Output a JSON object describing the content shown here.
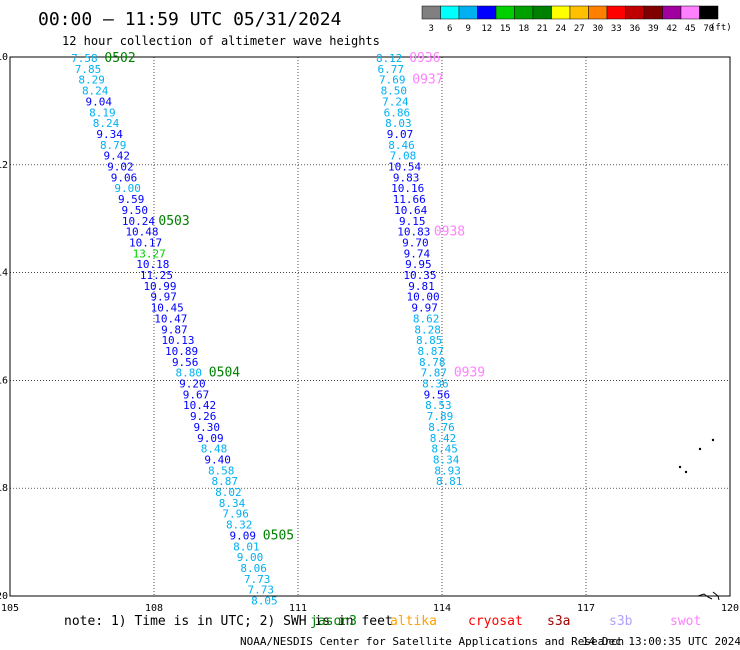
{
  "title": "00:00 – 11:59 UTC 05/31/2024",
  "subtitle": "12 hour collection of altimeter wave heights",
  "legend": {
    "bins": [
      "3",
      "6",
      "9",
      "12",
      "15",
      "18",
      "21",
      "24",
      "27",
      "30",
      "33",
      "36",
      "39",
      "42",
      "45",
      "70"
    ],
    "unit": "(ft)",
    "colors": [
      "#808080",
      "#00ffff",
      "#00b0f0",
      "#0000ff",
      "#00d000",
      "#00a000",
      "#008000",
      "#ffff00",
      "#ffc000",
      "#ff8000",
      "#ff0000",
      "#c00000",
      "#800000",
      "#a000a0",
      "#ff80ff",
      "#000000"
    ]
  },
  "axes": {
    "lon_ticks": [
      "105",
      "108",
      "111",
      "114",
      "117",
      "120"
    ],
    "lat_ticks": [
      "10",
      "12",
      "14",
      "16",
      "18",
      "20"
    ],
    "lon_range": [
      105,
      120
    ],
    "lat_range": [
      10,
      20
    ]
  },
  "tracks": [
    {
      "name": "west-track",
      "lon_start": 106.55,
      "lon_end": 110.3,
      "observations": [
        "7.58",
        "7.85",
        "8.29",
        "8.24",
        "9.04",
        "8.19",
        "8.24",
        "9.34",
        "8.79",
        "9.42",
        "9.02",
        "9.06",
        "9.00",
        "9.59",
        "9.50",
        "10.24",
        "10.48",
        "10.17",
        "13.27",
        "10.18",
        "11.25",
        "10.99",
        "9.97",
        "10.45",
        "10.47",
        "9.87",
        "10.13",
        "10.89",
        "9.56",
        "8.80",
        "9.20",
        "9.67",
        "10.42",
        "9.26",
        "9.30",
        "9.09",
        "8.48",
        "9.40",
        "8.58",
        "8.87",
        "8.02",
        "8.34",
        "7.96",
        "8.32",
        "9.09",
        "8.01",
        "9.00",
        "8.06",
        "7.73",
        "7.73",
        "8.05"
      ],
      "colors": [
        "#00b0f0",
        "#00b0f0",
        "#00b0f0",
        "#00b0f0",
        "#0000ff",
        "#00b0f0",
        "#00b0f0",
        "#0000ff",
        "#00b0f0",
        "#0000ff",
        "#0000ff",
        "#0000ff",
        "#00b0f0",
        "#0000ff",
        "#0000ff",
        "#0000ff",
        "#0000ff",
        "#0000ff",
        "#00d000",
        "#0000ff",
        "#0000ff",
        "#0000ff",
        "#0000ff",
        "#0000ff",
        "#0000ff",
        "#0000ff",
        "#0000ff",
        "#0000ff",
        "#0000ff",
        "#00b0f0",
        "#0000ff",
        "#0000ff",
        "#0000ff",
        "#0000ff",
        "#0000ff",
        "#0000ff",
        "#00b0f0",
        "#0000ff",
        "#00b0f0",
        "#00b0f0",
        "#00b0f0",
        "#00b0f0",
        "#00b0f0",
        "#00b0f0",
        "#0000ff",
        "#00b0f0",
        "#00b0f0",
        "#00b0f0",
        "#00b0f0",
        "#00b0f0",
        "#00b0f0"
      ],
      "times": [
        {
          "label": "0502",
          "index": 0,
          "color": "#008000"
        },
        {
          "label": "0503",
          "index": 15,
          "color": "#008000"
        },
        {
          "label": "0504",
          "index": 29,
          "color": "#008000"
        },
        {
          "label": "0505",
          "index": 44,
          "color": "#008000"
        }
      ]
    },
    {
      "name": "east-track",
      "lon_start": 112.9,
      "lon_end": 114.15,
      "observations": [
        "8.12",
        "6.77",
        "7.69",
        "8.50",
        "7.24",
        "6.86",
        "8.03",
        "9.07",
        "8.46",
        "7.08",
        "10.54",
        "9.83",
        "10.16",
        "11.66",
        "10.64",
        "9.15",
        "10.83",
        "9.70",
        "9.74",
        "9.95",
        "10.35",
        "9.81",
        "10.00",
        "9.97",
        "8.62",
        "8.28",
        "8.85",
        "8.87",
        "8.78",
        "7.87",
        "8.36",
        "9.56",
        "8.53",
        "7.89",
        "8.76",
        "8.42",
        "8.45",
        "8.34",
        "8.93",
        "8.81"
      ],
      "colors": [
        "#00b0f0",
        "#00b0f0",
        "#00b0f0",
        "#00b0f0",
        "#00b0f0",
        "#00b0f0",
        "#00b0f0",
        "#0000ff",
        "#00b0f0",
        "#00b0f0",
        "#0000ff",
        "#0000ff",
        "#0000ff",
        "#0000ff",
        "#0000ff",
        "#0000ff",
        "#0000ff",
        "#0000ff",
        "#0000ff",
        "#0000ff",
        "#0000ff",
        "#0000ff",
        "#0000ff",
        "#0000ff",
        "#00b0f0",
        "#00b0f0",
        "#00b0f0",
        "#00b0f0",
        "#00b0f0",
        "#00b0f0",
        "#00b0f0",
        "#0000ff",
        "#00b0f0",
        "#00b0f0",
        "#00b0f0",
        "#00b0f0",
        "#00b0f0",
        "#00b0f0",
        "#00b0f0",
        "#00b0f0"
      ],
      "times": [
        {
          "label": "0936",
          "index": 0,
          "color": "#ff80ff"
        },
        {
          "label": "0937",
          "index": 2,
          "color": "#ff80ff"
        },
        {
          "label": "0938",
          "index": 16,
          "color": "#ff80ff"
        },
        {
          "label": "0939",
          "index": 29,
          "color": "#ff80ff"
        }
      ]
    }
  ],
  "note": {
    "text": "note: 1) Time is in UTC; 2) SWH is in feet",
    "satellites": [
      {
        "name": "jason3",
        "color": "#008000"
      },
      {
        "name": "altika",
        "color": "#ffa000"
      },
      {
        "name": "cryosat",
        "color": "#ff0000"
      },
      {
        "name": "s3a",
        "color": "#a00000"
      },
      {
        "name": "s3b",
        "color": "#b0a0ff"
      },
      {
        "name": "swot",
        "color": "#ff80ff"
      }
    ]
  },
  "credit": "NOAA/NESDIS Center for Satellite Applications and Research",
  "timestamp": "14 Dec 13:00:35 UTC 2024"
}
